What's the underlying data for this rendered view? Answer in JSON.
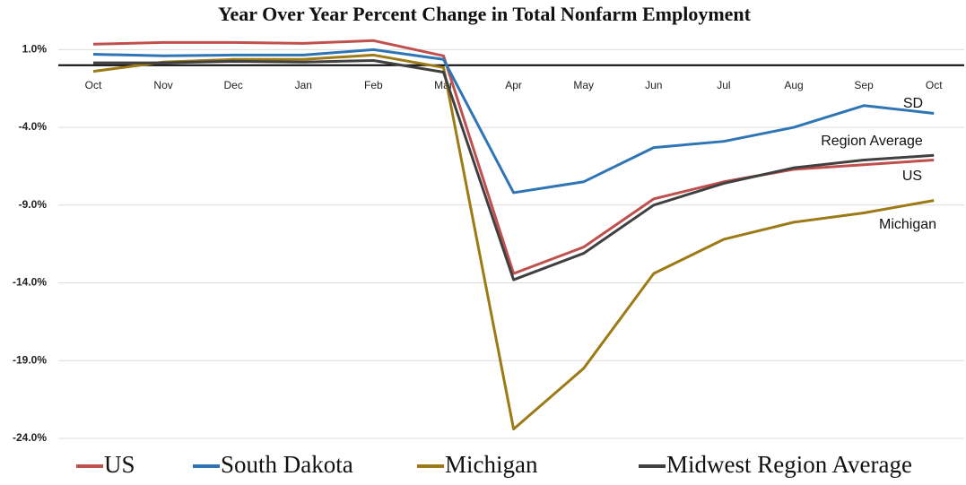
{
  "chart_data": {
    "type": "line",
    "title": "Year Over Year Percent Change in Total Nonfarm Employment",
    "categories": [
      "Oct",
      "Nov",
      "Dec",
      "Jan",
      "Feb",
      "Mar",
      "Apr",
      "May",
      "Jun",
      "Jul",
      "Aug",
      "Sep",
      "Oct"
    ],
    "series": [
      {
        "name": "US",
        "color": "#c0504d",
        "values": [
          1.35,
          1.46,
          1.46,
          1.4,
          1.58,
          0.6,
          -13.4,
          -11.7,
          -8.6,
          -7.5,
          -6.7,
          -6.4,
          -6.1
        ]
      },
      {
        "name": "South Dakota",
        "color": "#2e75b6",
        "values": [
          0.7,
          0.6,
          0.65,
          0.65,
          1.0,
          0.37,
          -8.2,
          -7.5,
          -5.3,
          -4.9,
          -4.0,
          -2.6,
          -3.1
        ]
      },
      {
        "name": "Michigan",
        "color": "#9c7a15",
        "values": [
          -0.4,
          0.2,
          0.37,
          0.37,
          0.65,
          -0.15,
          -23.4,
          -19.5,
          -13.4,
          -11.2,
          -10.1,
          -9.5,
          -8.7
        ]
      },
      {
        "name": "Midwest Region Average",
        "color": "#404040",
        "values": [
          0.15,
          0.15,
          0.25,
          0.2,
          0.3,
          -0.45,
          -13.8,
          -12.1,
          -9.0,
          -7.6,
          -6.6,
          -6.1,
          -5.8
        ]
      }
    ],
    "annotations": [
      "SD",
      "Region Average",
      "US",
      "Michigan"
    ],
    "ylim": [
      -24,
      2
    ],
    "yticks": [
      {
        "value": 1,
        "label": "1.0%"
      },
      {
        "value": -4,
        "label": "-4.0%"
      },
      {
        "value": -9,
        "label": "-9.0%"
      },
      {
        "value": -14,
        "label": "-14.0%"
      },
      {
        "value": -19,
        "label": "-19.0%"
      },
      {
        "value": -24,
        "label": "-24.0%"
      }
    ],
    "grid": true
  }
}
